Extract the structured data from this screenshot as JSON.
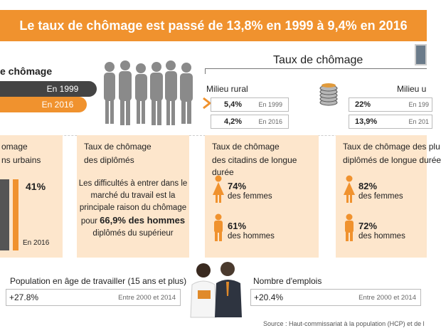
{
  "title": "Le taux de chômage est passé de 13,8% en 1999 à 9,4% en 2016",
  "left_panel": {
    "title_fragment": "e chômage",
    "year_1999": "En 1999",
    "year_2016": "En 2016"
  },
  "rate_section": {
    "title": "Taux de chômage",
    "rural": {
      "label": "Milieu rural",
      "rows": [
        {
          "value": "5,4%",
          "year": "En 1999"
        },
        {
          "value": "4,2%",
          "year": "En 2016"
        }
      ]
    },
    "urban": {
      "label": "Milieu u",
      "rows": [
        {
          "value": "22%",
          "year": "En 199"
        },
        {
          "value": "13,9%",
          "year": "En 201"
        }
      ]
    }
  },
  "cards": {
    "urban_young": {
      "title_line1": "omage",
      "title_line2": "ns urbains",
      "value": "41%",
      "year": "En 2016"
    },
    "graduates": {
      "title_line1": "Taux de chômage",
      "title_line2": "des diplômés",
      "text_line1": "Les difficultés à entrer dans le",
      "text_line2": "marché du travail est la",
      "text_line3": "principale raison du chômage",
      "text_pre": "pour ",
      "text_strong": "66,9% des hommes",
      "text_line5": "diplômés du supérieur"
    },
    "long_term_city": {
      "title_line1": "Taux de chômage",
      "title_line2": "des citadins de longue durée",
      "women_value": "74%",
      "women_label": "des femmes",
      "men_value": "61%",
      "men_label": "des hommes"
    },
    "long_term_graduates": {
      "title_line1": "Taux de chômage des plu",
      "title_line2": "diplômés de longue durée",
      "women_value": "82%",
      "women_label": "des femmes",
      "men_value": "72%",
      "men_label": "des hommes"
    }
  },
  "bottom": {
    "population": {
      "label": "Population en âge de travailler (15 ans et plus)",
      "value": "+27.8%",
      "range": "Entre 2000 et 2014"
    },
    "jobs": {
      "label": "Nombre d'emplois",
      "value": "+20.4%",
      "range": "Entre 2000 et 2014"
    }
  },
  "source": "Source : Haut-commissariat à la population (HCP) et de l",
  "colors": {
    "accent": "#f0922e",
    "dark": "#555555",
    "card_bg": "#fde6cc"
  },
  "chart_data": {
    "type": "bar",
    "categories": [
      "",
      "En 2016"
    ],
    "values": [
      null,
      41
    ],
    "data_labels": [
      "",
      "41%"
    ]
  }
}
